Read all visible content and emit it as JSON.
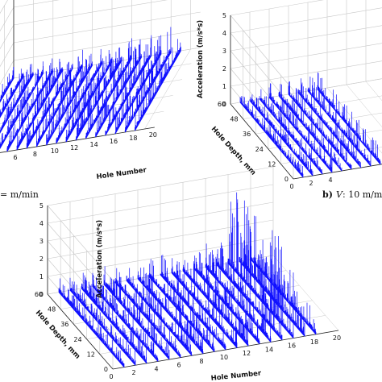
{
  "colors": {
    "series": "#1010ff",
    "grid": "#c8c8c8",
    "axis": "#222222"
  },
  "captions": {
    "a_rest": "= m/min",
    "b_letter": "b)",
    "b_var": "V",
    "b_rest": ": 10 m/m"
  },
  "chart_data": [
    {
      "panel": "a",
      "type": "area",
      "xlabel": "Hole Number",
      "x_ticks": [
        "6",
        "8",
        "10",
        "12",
        "14",
        "16",
        "18",
        "20"
      ],
      "xlim": [
        1,
        20
      ],
      "ylabel": "",
      "zlim": [
        0,
        5
      ],
      "series": [
        {
          "x": 1,
          "peak": 0.8
        },
        {
          "x": 2,
          "peak": 0.7
        },
        {
          "x": 3,
          "peak": 0.9
        },
        {
          "x": 4,
          "peak": 0.8
        },
        {
          "x": 5,
          "peak": 0.9
        },
        {
          "x": 6,
          "peak": 1.0
        },
        {
          "x": 7,
          "peak": 0.9
        },
        {
          "x": 8,
          "peak": 1.0
        },
        {
          "x": 9,
          "peak": 1.1
        },
        {
          "x": 10,
          "peak": 1.0
        },
        {
          "x": 11,
          "peak": 1.2
        },
        {
          "x": 12,
          "peak": 1.1
        },
        {
          "x": 13,
          "peak": 1.4
        },
        {
          "x": 14,
          "peak": 1.3
        },
        {
          "x": 15,
          "peak": 1.2
        },
        {
          "x": 16,
          "peak": 1.3
        },
        {
          "x": 17,
          "peak": 1.6
        },
        {
          "x": 18,
          "peak": 1.1
        }
      ]
    },
    {
      "panel": "b",
      "type": "area",
      "zlabel": "Acceleration (m/s*s)",
      "z_ticks": [
        "0",
        "1",
        "2",
        "3",
        "4",
        "5"
      ],
      "zlim": [
        0,
        5
      ],
      "ylabel": "Hole Depth, mm",
      "y_ticks": [
        "0",
        "12",
        "24",
        "36",
        "48",
        "60"
      ],
      "ylim": [
        0,
        60
      ],
      "x_ticks": [
        "0",
        "2",
        "4"
      ],
      "series": [
        {
          "x": 1,
          "peak": 0.7
        },
        {
          "x": 2,
          "peak": 0.8
        },
        {
          "x": 3,
          "peak": 0.8
        },
        {
          "x": 4,
          "peak": 0.9
        },
        {
          "x": 5,
          "peak": 0.9
        },
        {
          "x": 6,
          "peak": 1.0
        },
        {
          "x": 7,
          "peak": 1.0
        },
        {
          "x": 8,
          "peak": 1.1
        },
        {
          "x": 9,
          "peak": 1.1
        }
      ]
    },
    {
      "panel": "c",
      "type": "area",
      "zlabel": "Acceleration (m/s*s)",
      "z_ticks": [
        "0",
        "1",
        "2",
        "3",
        "4",
        "5"
      ],
      "zlim": [
        0,
        5
      ],
      "ylabel": "Hole Depth, mm",
      "y_ticks": [
        "0",
        "12",
        "24",
        "36",
        "48",
        "60"
      ],
      "ylim": [
        0,
        60
      ],
      "xlabel": "Hole Number",
      "x_ticks": [
        "0",
        "2",
        "4",
        "6",
        "8",
        "10",
        "12",
        "14",
        "16",
        "18",
        "20"
      ],
      "xlim": [
        0,
        20
      ],
      "series": [
        {
          "x": 1,
          "peak": 0.9
        },
        {
          "x": 2,
          "peak": 0.8
        },
        {
          "x": 3,
          "peak": 1.0
        },
        {
          "x": 4,
          "peak": 0.9
        },
        {
          "x": 5,
          "peak": 1.1
        },
        {
          "x": 6,
          "peak": 1.0
        },
        {
          "x": 7,
          "peak": 1.2
        },
        {
          "x": 8,
          "peak": 1.1
        },
        {
          "x": 9,
          "peak": 1.2
        },
        {
          "x": 10,
          "peak": 1.3
        },
        {
          "x": 11,
          "peak": 1.2
        },
        {
          "x": 12,
          "peak": 1.4
        },
        {
          "x": 13,
          "peak": 1.3
        },
        {
          "x": 14,
          "peak": 1.5
        },
        {
          "x": 15,
          "peak": 1.6
        },
        {
          "x": 16,
          "peak": 4.8
        },
        {
          "x": 17,
          "peak": 1.7
        },
        {
          "x": 18,
          "peak": 1.4
        }
      ]
    }
  ]
}
